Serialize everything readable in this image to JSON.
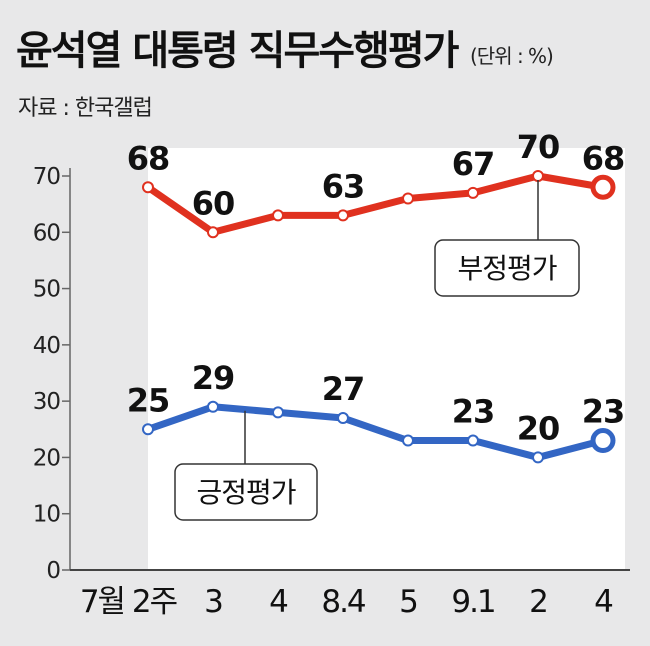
{
  "title": "윤석열 대통령 직무수행평가",
  "unit": "(단위 : %)",
  "source": "자료 : 한국갤럽",
  "colors": {
    "negative": "#e0311f",
    "positive": "#3366c4",
    "plot_bg": "#ffffff",
    "panel_bg": "#e8e8e9"
  },
  "chart_data": {
    "type": "line",
    "categories": [
      "7월 2주",
      "3",
      "4",
      "8.4",
      "5",
      "9.1",
      "2",
      "4"
    ],
    "ylim": [
      0,
      70
    ],
    "yticks": [
      0,
      10,
      20,
      30,
      40,
      50,
      60,
      70
    ],
    "grid": false,
    "series": [
      {
        "name": "부정평가",
        "color": "#e0311f",
        "values": [
          68,
          60,
          63,
          63,
          66,
          67,
          70,
          68
        ],
        "labels": [
          "68",
          "60",
          "",
          "63",
          "",
          "67",
          "70",
          "68"
        ]
      },
      {
        "name": "긍정평가",
        "color": "#3366c4",
        "values": [
          25,
          29,
          28,
          27,
          23,
          23,
          20,
          23
        ],
        "labels": [
          "25",
          "29",
          "",
          "27",
          "",
          "23",
          "20",
          "23"
        ]
      }
    ]
  }
}
